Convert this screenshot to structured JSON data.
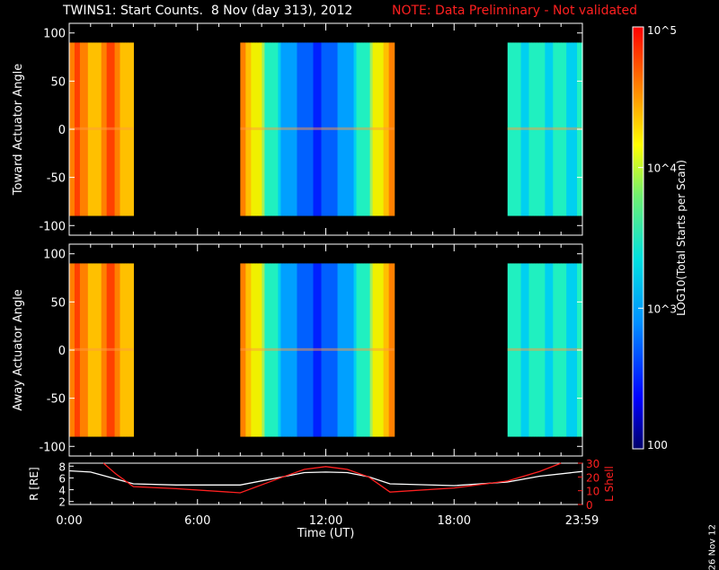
{
  "header": {
    "title": "TWINS1: Start Counts.  8 Nov (day 313), 2012",
    "note": "NOTE: Data Preliminary - Not validated"
  },
  "date_stamp": "26 Nov 12",
  "colors": {
    "background": "#000000",
    "axis": "#ffffff",
    "note": "#ff2020",
    "l_shell": "#ff2020",
    "radius": "#ffffff"
  },
  "chart_data": [
    {
      "type": "heatmap",
      "name": "toward",
      "ylabel": "Toward Actuator Angle",
      "ylim": [
        -110,
        110
      ],
      "yticks": [
        "100",
        "50",
        "0",
        "-50",
        "-100"
      ],
      "xlim": [
        0,
        24
      ],
      "data_y_range": [
        -90,
        90
      ],
      "segments": [
        {
          "start": 0.0,
          "end": 3.0,
          "profile": "high"
        },
        {
          "start": 8.0,
          "end": 15.2,
          "profile": "dip"
        },
        {
          "start": 20.5,
          "end": 24.0,
          "profile": "mid"
        }
      ]
    },
    {
      "type": "heatmap",
      "name": "away",
      "ylabel": "Away Actuator Angle",
      "ylim": [
        -110,
        110
      ],
      "yticks": [
        "100",
        "50",
        "0",
        "-50",
        "-100"
      ],
      "xlim": [
        0,
        24
      ],
      "data_y_range": [
        -90,
        90
      ],
      "segments": [
        {
          "start": 0.0,
          "end": 3.0,
          "profile": "high"
        },
        {
          "start": 8.0,
          "end": 15.2,
          "profile": "dip"
        },
        {
          "start": 20.5,
          "end": 24.0,
          "profile": "mid"
        }
      ]
    },
    {
      "type": "line",
      "name": "orbit",
      "xlabel": "Time (UT)",
      "xticks": [
        "0:00",
        "6:00",
        "12:00",
        "18:00",
        "23:59"
      ],
      "xtick_values": [
        0,
        6,
        12,
        18,
        23.98
      ],
      "left_axis": {
        "label": "R [RE]",
        "ylim": [
          1.5,
          8.5
        ],
        "yticks": [
          "8",
          "6",
          "4",
          "2"
        ]
      },
      "right_axis": {
        "label": "L Shell",
        "ylim": [
          0,
          30
        ],
        "yticks": [
          "30",
          "20",
          "10",
          "0"
        ]
      },
      "series": [
        {
          "axis": "left",
          "x": [
            0,
            1,
            2,
            3,
            5,
            8,
            10,
            11,
            12,
            13,
            14,
            15,
            18,
            20.5,
            22,
            24
          ],
          "y": [
            7.2,
            7.0,
            6.0,
            5.0,
            4.8,
            4.8,
            6.2,
            6.9,
            7.0,
            6.9,
            6.2,
            5.0,
            4.7,
            5.3,
            6.3,
            7.1
          ]
        },
        {
          "axis": "right",
          "x": [
            1.6,
            2.2,
            3.0,
            5,
            8,
            10,
            11,
            12,
            13,
            14,
            15,
            18,
            20.5,
            22,
            23
          ],
          "y": [
            30,
            22,
            13,
            11.5,
            8.5,
            20,
            25.5,
            27.5,
            25.5,
            20,
            9,
            12,
            17,
            24,
            30
          ]
        }
      ]
    }
  ],
  "colorbar": {
    "label": "LOG10(Total Starts per Scan)",
    "ticks": [
      "10^5",
      "10^4",
      "10^3",
      "100"
    ],
    "tick_values": [
      100000,
      10000,
      1000,
      100
    ],
    "scale": "log"
  }
}
